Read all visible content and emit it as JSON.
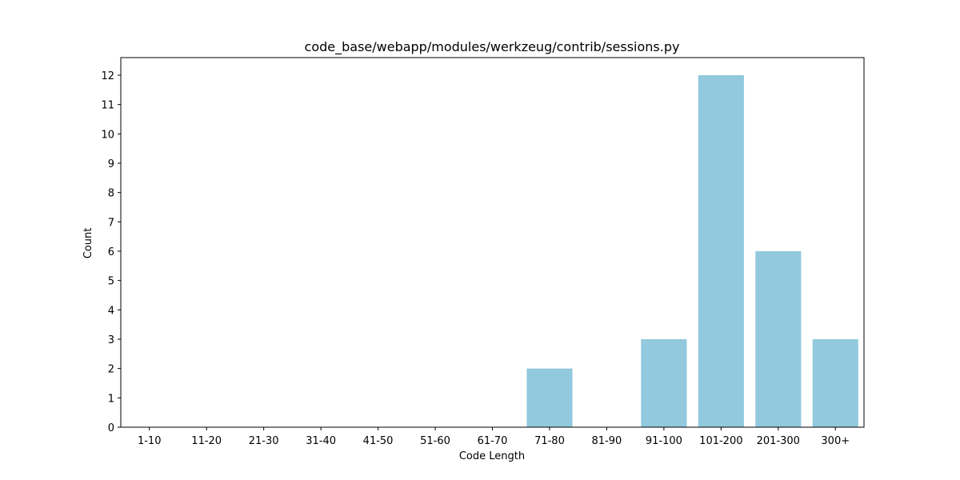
{
  "chart_data": {
    "type": "bar",
    "title": "code_base/webapp/modules/werkzeug/contrib/sessions.py",
    "xlabel": "Code Length",
    "ylabel": "Count",
    "categories": [
      "1-10",
      "11-20",
      "21-30",
      "31-40",
      "41-50",
      "51-60",
      "61-70",
      "71-80",
      "81-90",
      "91-100",
      "101-200",
      "201-300",
      "300+"
    ],
    "values": [
      0,
      0,
      0,
      0,
      0,
      0,
      0,
      2,
      0,
      3,
      12,
      6,
      3
    ],
    "ylim": [
      0,
      12.6
    ],
    "yticks": [
      0,
      1,
      2,
      3,
      4,
      5,
      6,
      7,
      8,
      9,
      10,
      11,
      12
    ],
    "grid": false,
    "bar_color": "#92C9DE"
  }
}
